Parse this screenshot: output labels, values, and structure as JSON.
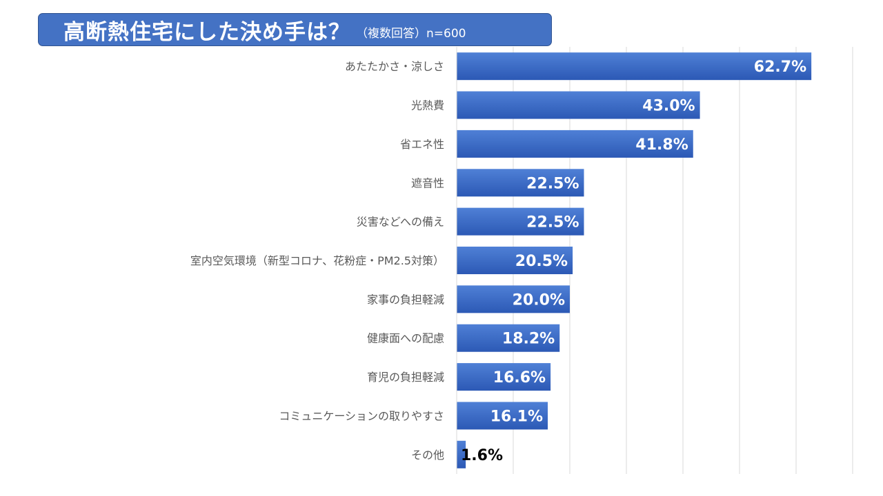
{
  "chart_data": {
    "type": "bar",
    "orientation": "horizontal",
    "title": "高断熱住宅にした決め手は？",
    "subtitle": "（複数回答）n=600",
    "categories": [
      "あたたかさ・涼しさ",
      "光熱費",
      "省エネ性",
      "遮音性",
      "災害などへの備え",
      "室内空気環境（新型コロナ、花粉症・PM2.5対策）",
      "家事の負担軽減",
      "健康面への配慮",
      "育児の負担軽減",
      "コミュニケーションの取りやすさ",
      "その他"
    ],
    "values": [
      62.7,
      43.0,
      41.8,
      22.5,
      22.5,
      20.5,
      20.0,
      18.2,
      16.6,
      16.1,
      1.6
    ],
    "data_labels": [
      "62.7%",
      "43.0%",
      "41.8%",
      "22.5%",
      "22.5%",
      "20.5%",
      "20.0%",
      "18.2%",
      "16.6%",
      "16.1%",
      "1.6%"
    ],
    "unit": "%",
    "xlim": [
      0,
      70
    ],
    "grid": true,
    "bar_color_top": "#4f80d6",
    "bar_color_bottom": "#2c59b5",
    "title_bg": "#4472c4"
  }
}
